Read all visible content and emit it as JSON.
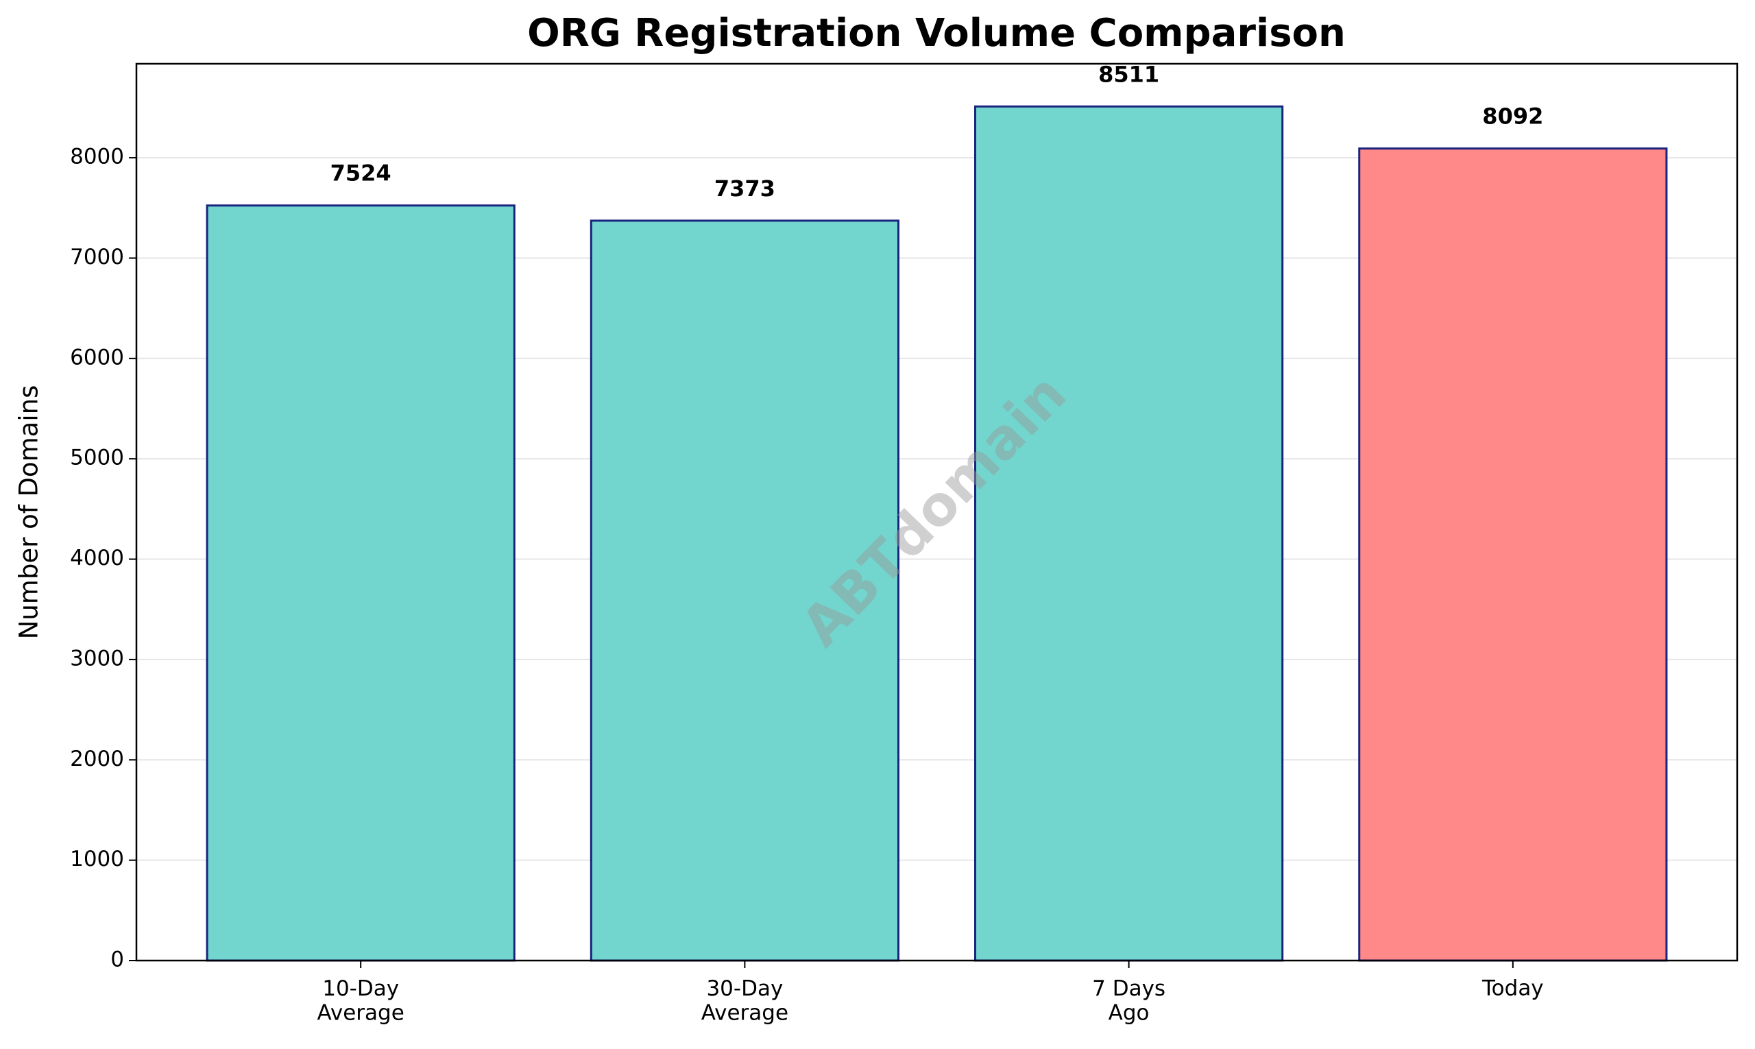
{
  "chart_data": {
    "type": "bar",
    "title": "ORG Registration Volume Comparison",
    "y_label": "Number of Domains",
    "watermark": "ABTdomain",
    "categories": [
      "10-Day\nAverage",
      "30-Day\nAverage",
      "7 Days\nAgo",
      "Today"
    ],
    "values": [
      7524,
      7373,
      8511,
      8092
    ],
    "colors": [
      "#72d6cf",
      "#72d6cf",
      "#72d6cf",
      "#ff8888"
    ],
    "edge_color": "#1a237e",
    "ylim": [
      0,
      8936.55
    ],
    "yticks": [
      0,
      1000,
      2000,
      3000,
      4000,
      5000,
      6000,
      7000,
      8000
    ],
    "grid": true
  }
}
